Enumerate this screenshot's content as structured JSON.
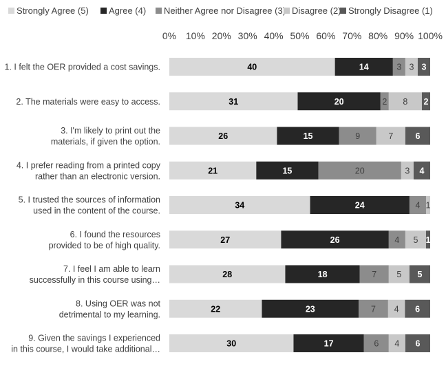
{
  "chart_data": {
    "type": "bar",
    "orientation": "horizontal",
    "stacked": "percent",
    "xlim": [
      0,
      100
    ],
    "x_ticks": [
      "0%",
      "10%",
      "20%",
      "30%",
      "40%",
      "50%",
      "60%",
      "70%",
      "80%",
      "90%",
      "100%"
    ],
    "categories": [
      [
        "1. I felt the OER  provided a cost savings."
      ],
      [
        "2. The materials  were easy to access."
      ],
      [
        "3. I'm likely to print out the",
        "materials,  if given the option."
      ],
      [
        "4. I prefer reading  from a printed copy",
        "rather than an electronic  version."
      ],
      [
        "5. I trusted the sources of information",
        "used in the content of the course."
      ],
      [
        "6. I found the resources",
        "provided to be of high quality."
      ],
      [
        "7. I feel I am able to learn",
        "successfully in this course using…"
      ],
      [
        "8. Using OER was not",
        "detrimental  to my learning."
      ],
      [
        "9. Given the savings I experienced",
        "in this course,   I would take additional…"
      ]
    ],
    "series": [
      {
        "name": "Strongly Agree (5)",
        "color": "#d9d9d9",
        "label_color": "#000000",
        "values": [
          40,
          31,
          26,
          21,
          34,
          27,
          28,
          22,
          30
        ]
      },
      {
        "name": "Agree (4)",
        "color": "#262626",
        "label_color": "#ffffff",
        "values": [
          14,
          20,
          15,
          15,
          24,
          26,
          18,
          23,
          17
        ]
      },
      {
        "name": "Neither Agree nor Disagree (3)",
        "color": "#8c8c8c",
        "label_color": "#404040",
        "values": [
          3,
          2,
          9,
          20,
          4,
          4,
          7,
          7,
          6
        ]
      },
      {
        "name": "Disagree (2)",
        "color": "#c8c8c8",
        "label_color": "#404040",
        "values": [
          3,
          8,
          7,
          3,
          1,
          5,
          5,
          4,
          4
        ]
      },
      {
        "name": "Strongly Disagree (1)",
        "color": "#595959",
        "label_color": "#ffffff",
        "values": [
          3,
          2,
          6,
          4,
          0,
          1,
          5,
          6,
          6
        ]
      }
    ],
    "legend_position": "top",
    "grid": false
  }
}
